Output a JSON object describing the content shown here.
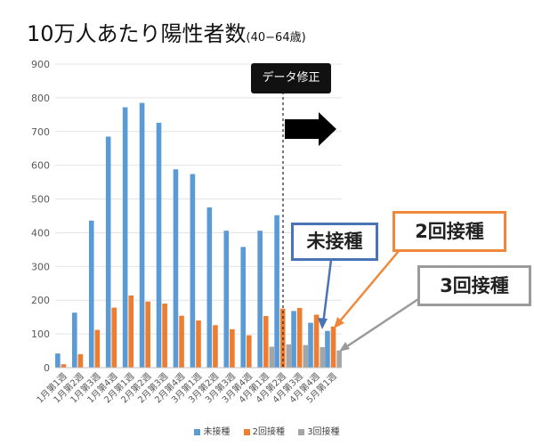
{
  "title": {
    "main": "10万人あたり陽性者数",
    "sub": "(40−64歳)"
  },
  "badge_label": "データ修正",
  "callouts": {
    "unvaccinated": "未接種",
    "dose2": "2回接種",
    "dose3": "3回接種"
  },
  "colors": {
    "unvaccinated": "#5b9bd5",
    "dose2": "#ed7d31",
    "dose3": "#a5a5a5",
    "callout_blue_border": "#4a73b5",
    "callout_orange_border": "#f0883c",
    "callout_gray_border": "#9a9a9a",
    "grid": "#e4e4e4",
    "axis_text": "#595959"
  },
  "chart_data": {
    "type": "bar",
    "categories": [
      "1月第1週",
      "1月第2週",
      "1月第3週",
      "1月第4週",
      "2月第1週",
      "2月第2週",
      "2月第3週",
      "2月第4週",
      "3月第1週",
      "3月第2週",
      "3月第3週",
      "3月第4週",
      "4月第1週",
      "4月第2週",
      "4月第3週",
      "4月第4週",
      "5月第1週"
    ],
    "series": [
      {
        "name": "未接種",
        "values": [
          42,
          163,
          436,
          685,
          772,
          785,
          726,
          588,
          574,
          475,
          406,
          358,
          406,
          452,
          168,
          133,
          109
        ]
      },
      {
        "name": "2回接種",
        "values": [
          10,
          40,
          112,
          178,
          214,
          196,
          190,
          154,
          140,
          126,
          114,
          96,
          153,
          175,
          177,
          157,
          122
        ]
      },
      {
        "name": "3回接種",
        "values": [
          0,
          0,
          0,
          0,
          0,
          0,
          0,
          0,
          0,
          0,
          0,
          0,
          62,
          69,
          67,
          61,
          51
        ]
      }
    ],
    "y_ticks": [
      "0",
      "100",
      "200",
      "300",
      "400",
      "500",
      "600",
      "700",
      "800",
      "900"
    ],
    "ylim": [
      0,
      900
    ],
    "grid": true,
    "legend_position": "bottom",
    "correction_after_index": 13
  }
}
